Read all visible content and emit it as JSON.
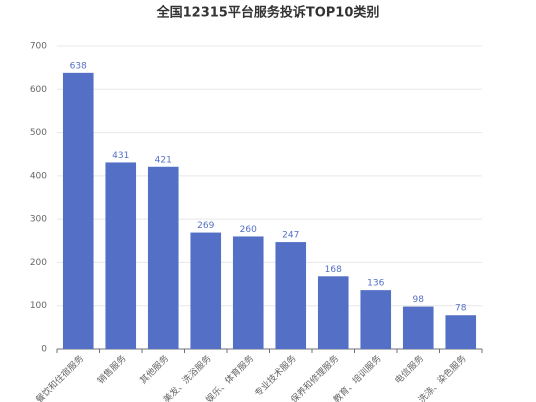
{
  "chart_data": {
    "type": "bar",
    "title": "全国12315平台服务投诉TOP10类别",
    "categories": [
      "餐饮和住宿服务",
      "销售服务",
      "其他服务",
      "美发、洗浴服务",
      "娱乐、体育服务",
      "专业技术服务",
      "保养和修理服务",
      "教育、培训服务",
      "电信服务",
      "洗涤、染色服务"
    ],
    "values": [
      638,
      431,
      421,
      269,
      260,
      247,
      168,
      136,
      98,
      78
    ],
    "color": "#5470c6",
    "ylim": [
      0,
      700
    ],
    "yticks": [
      0,
      100,
      200,
      300,
      400,
      500,
      600,
      700
    ],
    "grid": true
  }
}
